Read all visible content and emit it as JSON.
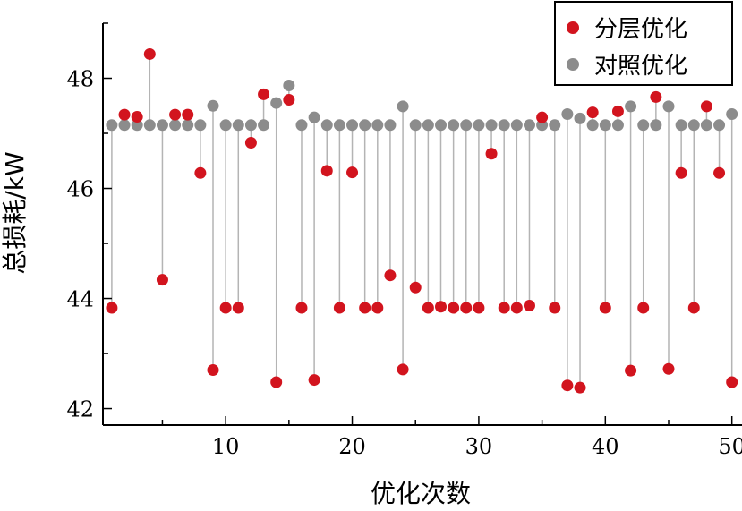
{
  "chart_data": {
    "type": "scatter",
    "title": "",
    "xlabel": "优化次数",
    "ylabel": "总损耗/kW",
    "xlim": [
      0.3,
      50.8
    ],
    "ylim": [
      41.7,
      49.0
    ],
    "xticks": [
      10,
      20,
      30,
      40,
      50
    ],
    "yticks": [
      42,
      44,
      46,
      48
    ],
    "legend_position": "top-right",
    "x": [
      1,
      2,
      3,
      4,
      5,
      6,
      7,
      8,
      9,
      10,
      11,
      12,
      13,
      14,
      15,
      16,
      17,
      18,
      19,
      20,
      21,
      22,
      23,
      24,
      25,
      26,
      27,
      28,
      29,
      30,
      31,
      32,
      33,
      34,
      35,
      36,
      37,
      38,
      39,
      40,
      41,
      42,
      43,
      44,
      45,
      46,
      47,
      48,
      49,
      50
    ],
    "series": [
      {
        "name": "分层优化",
        "color": "#d2141e",
        "values": [
          43.83,
          47.34,
          47.3,
          48.44,
          44.34,
          47.34,
          47.34,
          46.28,
          42.7,
          43.83,
          43.83,
          46.83,
          47.71,
          42.48,
          47.61,
          43.83,
          42.52,
          46.32,
          43.83,
          46.29,
          43.83,
          43.83,
          44.42,
          42.71,
          44.2,
          43.83,
          43.85,
          43.83,
          43.83,
          43.83,
          46.63,
          43.83,
          43.83,
          43.87,
          47.29,
          43.83,
          42.42,
          42.38,
          47.38,
          43.83,
          47.4,
          42.69,
          43.83,
          47.66,
          42.72,
          46.28,
          43.83,
          47.49,
          46.28,
          42.48
        ]
      },
      {
        "name": "对照优化",
        "color": "#8c8c8c",
        "values": [
          47.15,
          47.15,
          47.15,
          47.15,
          47.15,
          47.15,
          47.15,
          47.15,
          47.5,
          47.15,
          47.15,
          47.15,
          47.15,
          47.55,
          47.87,
          47.15,
          47.29,
          47.15,
          47.15,
          47.15,
          47.15,
          47.15,
          47.15,
          47.49,
          47.15,
          47.15,
          47.15,
          47.15,
          47.15,
          47.15,
          47.15,
          47.15,
          47.15,
          47.15,
          47.15,
          47.15,
          47.35,
          47.27,
          47.15,
          47.15,
          47.15,
          47.49,
          47.15,
          47.15,
          47.49,
          47.15,
          47.15,
          47.15,
          47.15,
          47.35
        ]
      }
    ]
  }
}
